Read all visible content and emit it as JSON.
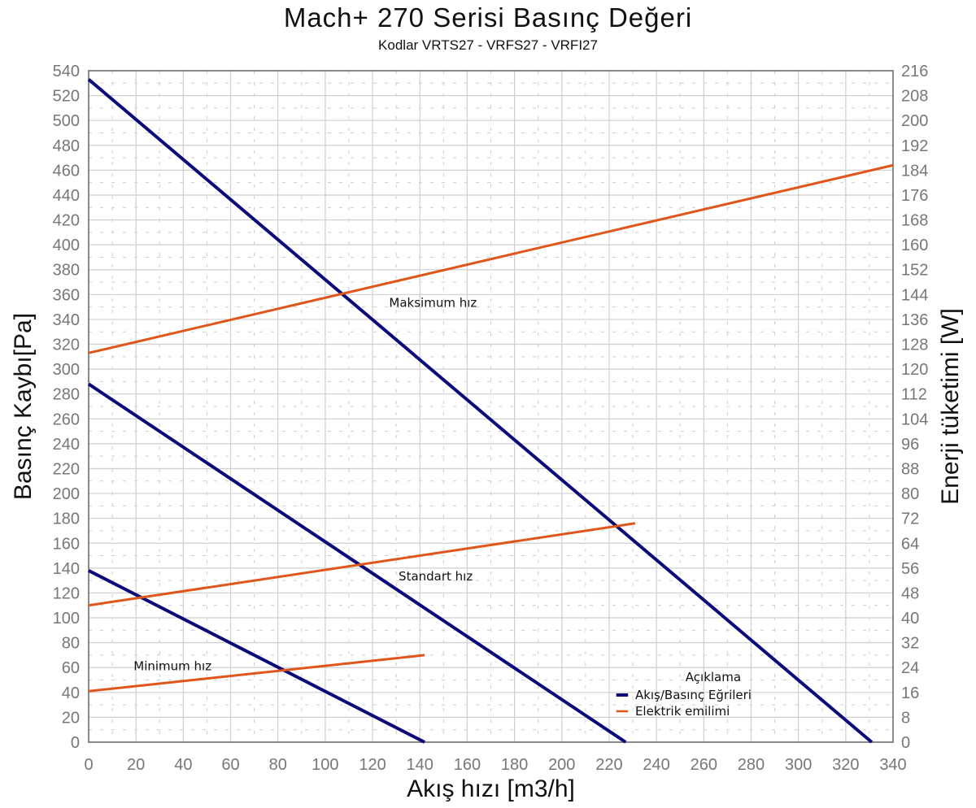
{
  "chart_data": {
    "type": "line",
    "title": "Mach+ 270 Serisi Basınç Değeri",
    "subtitle": "Kodlar VRTS27 - VRFS27 - VRFI27",
    "xlabel": "Akış hızı [m3/h]",
    "ylabel": "Basınç Kaybı[Pa]",
    "y2label": "Enerji tüketimi [W]",
    "xlim": [
      0,
      340
    ],
    "ylim": [
      0,
      540
    ],
    "y2lim": [
      0,
      216
    ],
    "xticks": [
      0,
      20,
      40,
      60,
      80,
      100,
      120,
      140,
      160,
      180,
      200,
      220,
      240,
      260,
      280,
      300,
      320,
      340
    ],
    "yticks": [
      0,
      20,
      40,
      60,
      80,
      100,
      120,
      140,
      160,
      180,
      200,
      220,
      240,
      260,
      280,
      300,
      320,
      340,
      360,
      380,
      400,
      420,
      440,
      460,
      480,
      500,
      520,
      540
    ],
    "y2ticks": [
      0,
      8,
      16,
      24,
      32,
      40,
      48,
      56,
      64,
      72,
      80,
      88,
      96,
      104,
      112,
      120,
      128,
      136,
      144,
      152,
      160,
      168,
      176,
      184,
      192,
      200,
      208,
      216
    ],
    "grid": true,
    "legend": {
      "title": "Açıklama",
      "placement": "bottom-right",
      "entries": [
        {
          "label": "Akış/Basınç Eğrileri",
          "color": "#0b0b7a"
        },
        {
          "label": "Elektrik emilimi",
          "color": "#e0561a"
        }
      ]
    },
    "series": [
      {
        "name": "Maksimum hız - basınç",
        "axis": "left",
        "color": "#0b0b7a",
        "x": [
          0,
          331
        ],
        "y": [
          533,
          0
        ]
      },
      {
        "name": "Standart hız - basınç",
        "axis": "left",
        "color": "#0b0b7a",
        "x": [
          0,
          227
        ],
        "y": [
          288,
          0
        ]
      },
      {
        "name": "Minimum hız - basınç",
        "axis": "left",
        "color": "#0b0b7a",
        "x": [
          0,
          142
        ],
        "y": [
          138,
          0
        ]
      },
      {
        "name": "Maksimum hız - güç",
        "axis": "right",
        "color": "#e0561a",
        "x": [
          0,
          340
        ],
        "y": [
          125.2,
          185.6
        ]
      },
      {
        "name": "Standart hız - güç",
        "axis": "right",
        "color": "#e0561a",
        "x": [
          0,
          231
        ],
        "y": [
          44,
          70.4
        ]
      },
      {
        "name": "Minimum hız - güç",
        "axis": "right",
        "color": "#e0561a",
        "x": [
          0,
          142
        ],
        "y": [
          16.4,
          28
        ]
      }
    ],
    "annotations": [
      "Maksimum hız",
      "Standart hız",
      "Minimum hız"
    ]
  }
}
